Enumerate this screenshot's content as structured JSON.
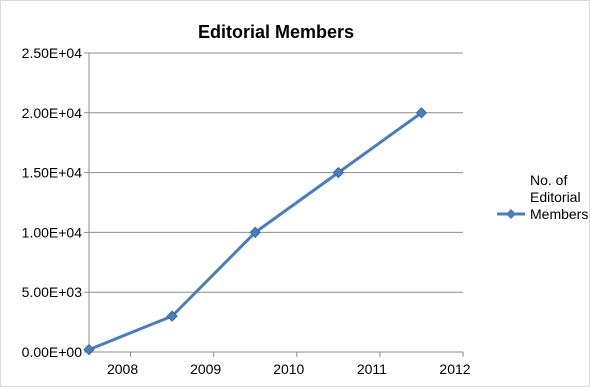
{
  "chart_data": {
    "type": "line",
    "title": "Editorial Members",
    "xlabel": "",
    "ylabel": "",
    "x_ticks": [
      "2008",
      "2009",
      "2010",
      "2011",
      "2012"
    ],
    "y_ticks": [
      "0.00E+00",
      "5.00E+03",
      "1.00E+04",
      "1.50E+04",
      "2.00E+04",
      "2.50E+04"
    ],
    "ylim": [
      0,
      25000
    ],
    "xlim": [
      2007.5,
      2012
    ],
    "grid": true,
    "legend_position": "right",
    "series": [
      {
        "name": "No. of Editorial Members",
        "color": "#4a7ebb",
        "marker": "diamond",
        "x": [
          2007.5,
          2008.5,
          2009.5,
          2010.5,
          2011.5
        ],
        "y": [
          200,
          3000,
          10000,
          15000,
          20000
        ]
      }
    ]
  }
}
